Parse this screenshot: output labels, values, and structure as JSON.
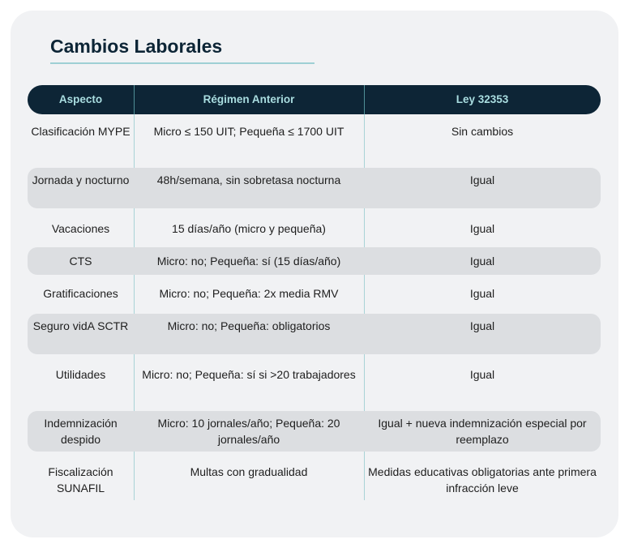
{
  "title": "Cambios Laborales",
  "headers": [
    "Aspecto",
    "Régimen Anterior",
    "Ley 32353"
  ],
  "rows": [
    {
      "aspecto": "Clasificación MYPE",
      "anterior": "Micro ≤ 150 UIT; Pequeña ≤ 1700 UIT",
      "ley": "Sin cambios"
    },
    {
      "aspecto": "Jornada y nocturno",
      "anterior": "48h/semana, sin sobretasa nocturna",
      "ley": "Igual"
    },
    {
      "aspecto": "Vacaciones",
      "anterior": "15 días/año (micro y pequeña)",
      "ley": "Igual"
    },
    {
      "aspecto": "CTS",
      "anterior": "Micro: no; Pequeña: sí (15 días/año)",
      "ley": "Igual"
    },
    {
      "aspecto": "Gratificaciones",
      "anterior": "Micro: no; Pequeña: 2x media RMV",
      "ley": "Igual"
    },
    {
      "aspecto": "Seguro vidA SCTR",
      "anterior": "Micro: no; Pequeña: obligatorios",
      "ley": "Igual"
    },
    {
      "aspecto": "Utilidades",
      "anterior": "Micro: no; Pequeña: sí si >20 trabajadores",
      "ley": "Igual"
    },
    {
      "aspecto": "Indemnización despido",
      "anterior": "Micro: 10 jornales/año; Pequeña: 20 jornales/año",
      "ley": "Igual + nueva indemnización especial por reemplazo"
    },
    {
      "aspecto": "Fiscalización SUNAFIL",
      "anterior": "Multas con gradualidad",
      "ley": "Medidas educativas obligatorias ante primera infracción leve"
    }
  ]
}
